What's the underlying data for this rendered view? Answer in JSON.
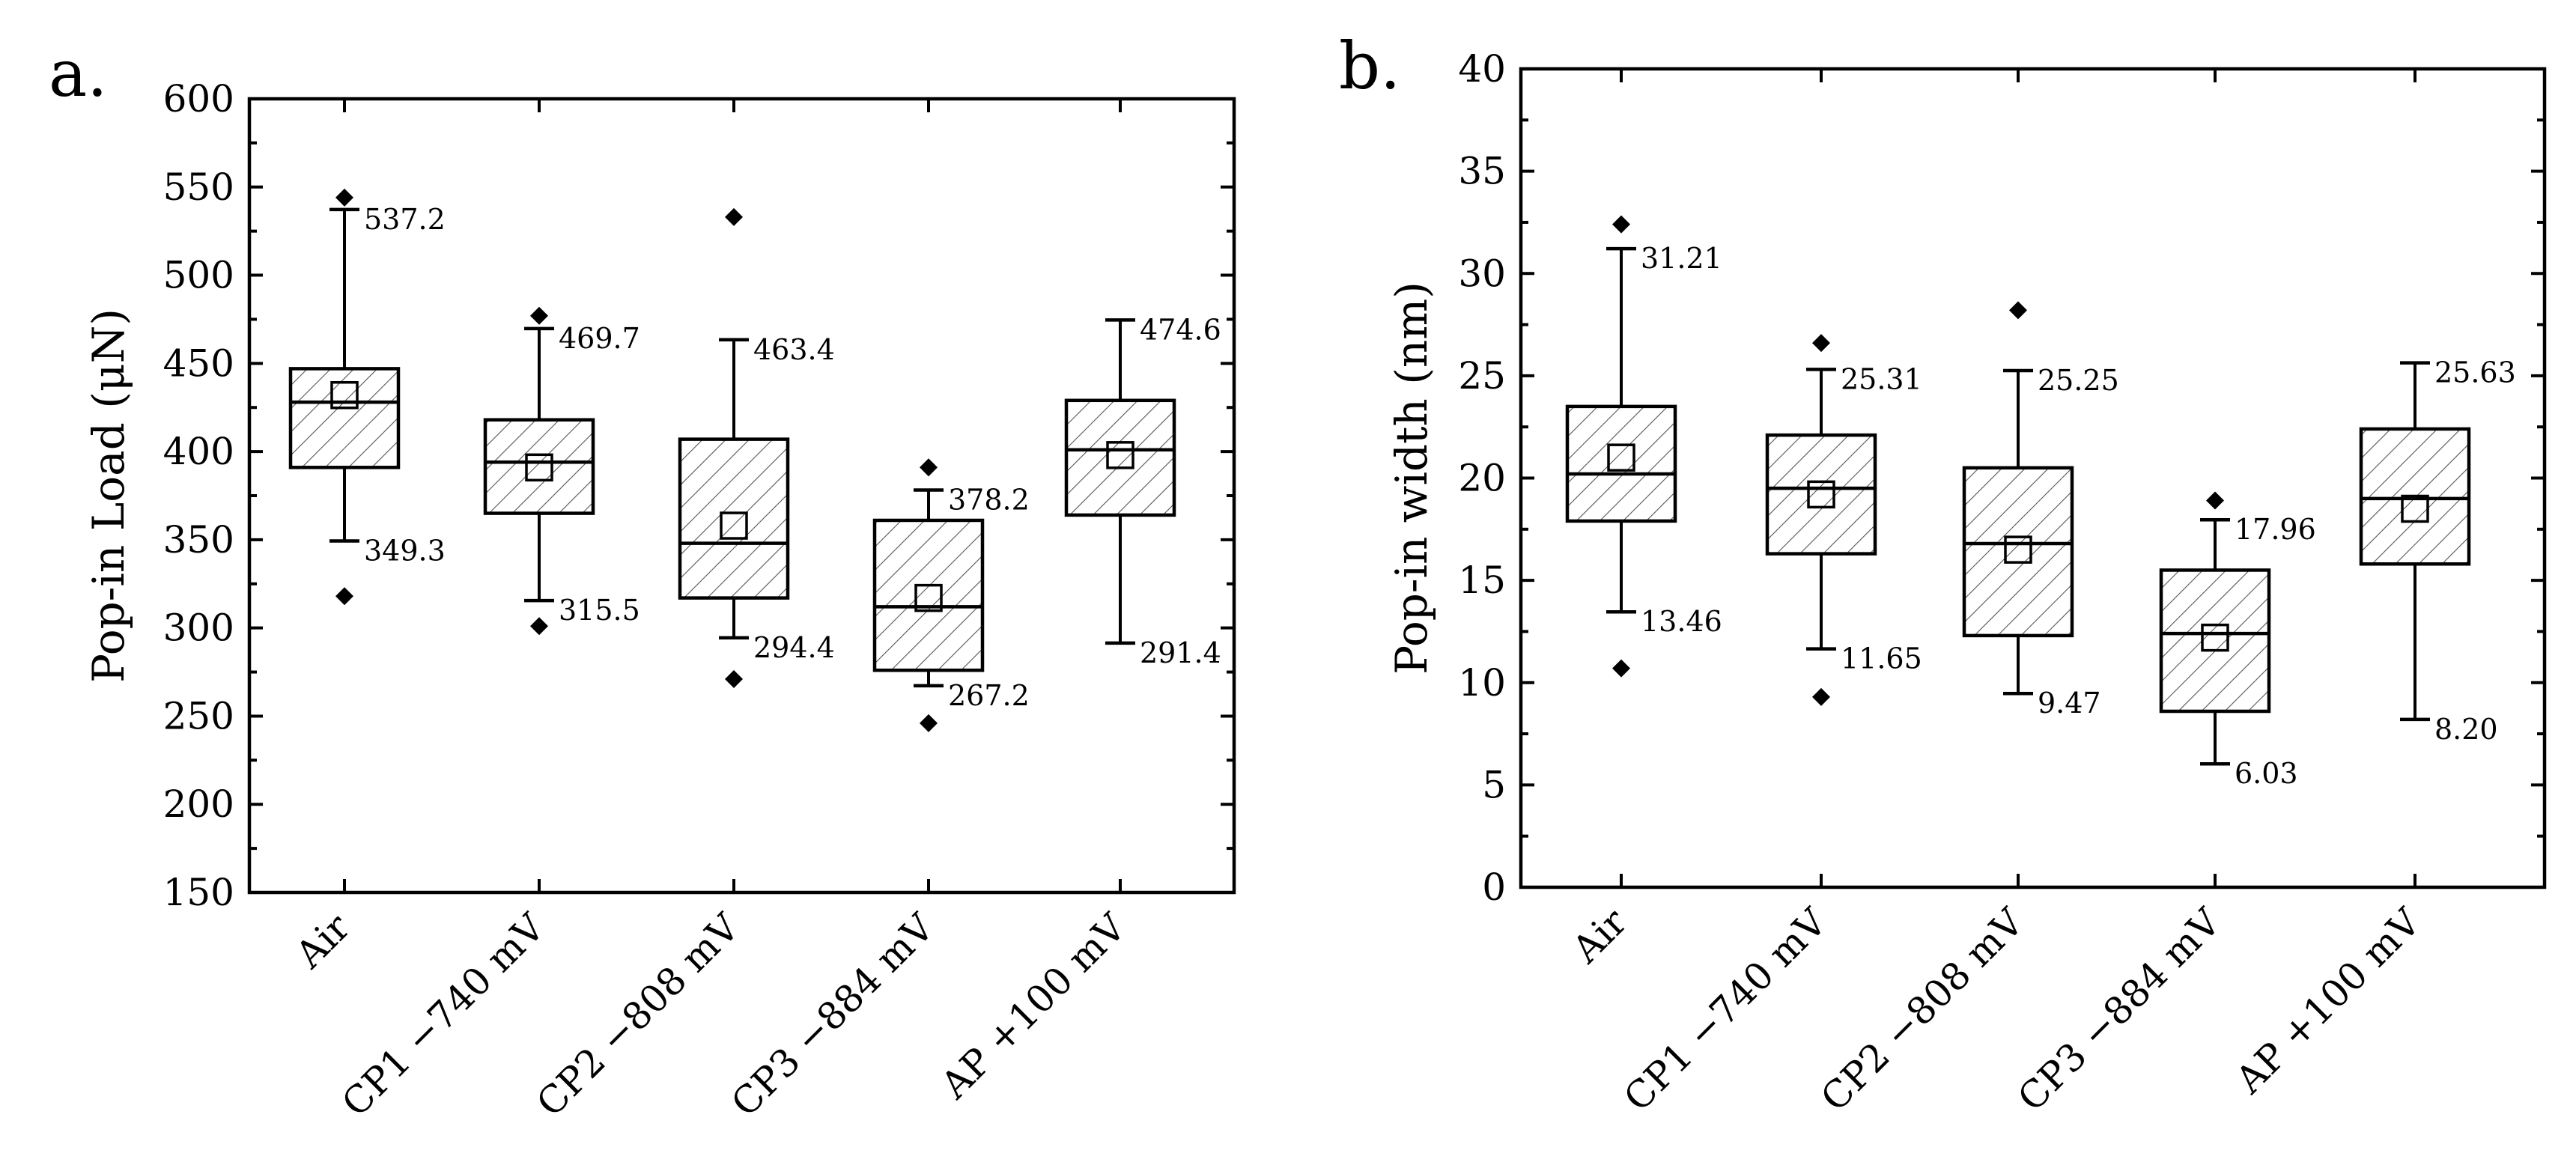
{
  "chart_data": [
    {
      "panel": "a.",
      "type": "box",
      "ylabel": "Pop-in Load (μN)",
      "ylim": [
        150,
        600
      ],
      "ytick_step": 50,
      "yticks": [
        "150",
        "200",
        "250",
        "300",
        "350",
        "400",
        "450",
        "500",
        "550",
        "600"
      ],
      "categories": [
        "Air",
        "CP1 −740 mV",
        "CP2 −808 mV",
        "CP3 −884 mV",
        "AP +100 mV"
      ],
      "boxes": [
        {
          "q1": 391,
          "median": 428,
          "q3": 447,
          "mean": 432,
          "whisker_low": 349.3,
          "whisker_high": 537.2,
          "label_low": "349.3",
          "label_high": "537.2",
          "outliers": [
            544,
            318
          ]
        },
        {
          "q1": 365,
          "median": 394,
          "q3": 418,
          "mean": 391,
          "whisker_low": 315.5,
          "whisker_high": 469.7,
          "label_low": "315.5",
          "label_high": "469.7",
          "outliers": [
            477,
            301
          ]
        },
        {
          "q1": 317,
          "median": 348,
          "q3": 407,
          "mean": 358,
          "whisker_low": 294.4,
          "whisker_high": 463.4,
          "label_low": "294.4",
          "label_high": "463.4",
          "outliers": [
            533,
            271
          ]
        },
        {
          "q1": 276,
          "median": 312,
          "q3": 361,
          "mean": 317,
          "whisker_low": 267.2,
          "whisker_high": 378.2,
          "label_low": "267.2",
          "label_high": "378.2",
          "outliers": [
            391,
            246
          ]
        },
        {
          "q1": 364,
          "median": 401,
          "q3": 429,
          "mean": 398,
          "whisker_low": 291.4,
          "whisker_high": 474.6,
          "label_low": "291.4",
          "label_high": "474.6",
          "outliers": []
        }
      ]
    },
    {
      "panel": "b.",
      "type": "box",
      "ylabel": "Pop-in width (nm)",
      "ylim": [
        0,
        40
      ],
      "ytick_step": 5,
      "yticks": [
        "0",
        "5",
        "10",
        "15",
        "20",
        "25",
        "30",
        "35",
        "40"
      ],
      "categories": [
        "Air",
        "CP1 −740 mV",
        "CP2 −808 mV",
        "CP3 −884 mV",
        "AP +100 mV"
      ],
      "boxes": [
        {
          "q1": 17.9,
          "median": 20.2,
          "q3": 23.5,
          "mean": 21.0,
          "whisker_low": 13.46,
          "whisker_high": 31.21,
          "label_low": "13.46",
          "label_high": "31.21",
          "outliers": [
            32.4,
            10.7
          ]
        },
        {
          "q1": 16.3,
          "median": 19.5,
          "q3": 22.1,
          "mean": 19.2,
          "whisker_low": 11.65,
          "whisker_high": 25.31,
          "label_low": "11.65",
          "label_high": "25.31",
          "outliers": [
            26.6,
            9.3
          ]
        },
        {
          "q1": 12.3,
          "median": 16.8,
          "q3": 20.5,
          "mean": 16.5,
          "whisker_low": 9.47,
          "whisker_high": 25.25,
          "label_low": "9.47",
          "label_high": "25.25",
          "outliers": [
            28.2
          ]
        },
        {
          "q1": 8.6,
          "median": 12.4,
          "q3": 15.5,
          "mean": 12.2,
          "whisker_low": 6.03,
          "whisker_high": 17.96,
          "label_low": "6.03",
          "label_high": "17.96",
          "outliers": [
            18.9
          ]
        },
        {
          "q1": 15.8,
          "median": 19.0,
          "q3": 22.4,
          "mean": 18.5,
          "whisker_low": 8.2,
          "whisker_high": 25.63,
          "label_low": "8.20",
          "label_high": "25.63",
          "outliers": []
        }
      ]
    }
  ]
}
